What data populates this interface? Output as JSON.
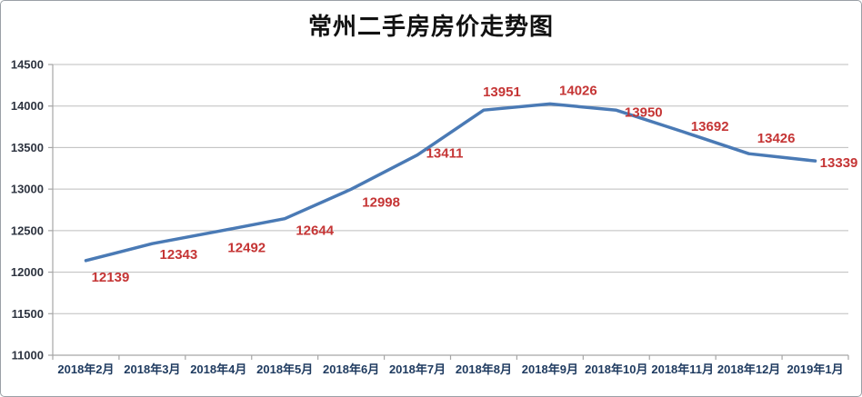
{
  "chart_data": {
    "type": "line",
    "title": "常州二手房房价走势图",
    "categories": [
      "2018年2月",
      "2018年3月",
      "2018年4月",
      "2018年5月",
      "2018年6月",
      "2018年7月",
      "2018年8月",
      "2018年9月",
      "2018年10月",
      "2018年11月",
      "2018年12月",
      "2019年1月"
    ],
    "values": [
      12139,
      12343,
      12492,
      12644,
      12998,
      13411,
      13951,
      14026,
      13950,
      13692,
      13426,
      13339
    ],
    "ylim": [
      11000,
      14500
    ],
    "ytick_step": 500,
    "yticks": [
      11000,
      11500,
      12000,
      12500,
      13000,
      13500,
      14000,
      14500
    ],
    "xlabel": "",
    "ylabel": "",
    "grid": true,
    "legend": "none",
    "colors": {
      "line": "#4a7ab5",
      "data_label": "#c53535",
      "x_axis_label": "#1e3a5f",
      "y_axis_label": "#2e3440",
      "grid_line": "#bdbdbd",
      "axis_line": "#a6a6a6",
      "title": "#111111",
      "background": "#ffffff",
      "border": "#9aa0a6"
    }
  }
}
